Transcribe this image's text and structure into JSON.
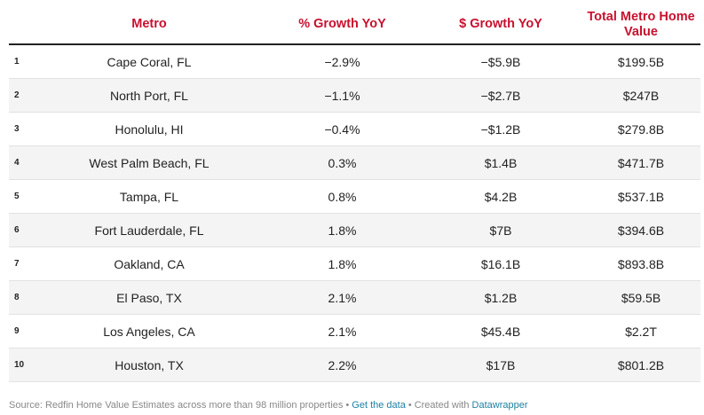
{
  "colors": {
    "header_text": "#c8102e",
    "link": "#1d81a2",
    "footer_text": "#888888",
    "row_alt_bg": "#f4f4f4"
  },
  "chart_data": {
    "type": "table",
    "columns": [
      "",
      "Metro",
      "% Growth YoY",
      "$ Growth YoY",
      "Total Metro Home Value"
    ],
    "rows": [
      {
        "rank": "1",
        "metro": "Cape Coral, FL",
        "pct_growth": "−2.9%",
        "dollar_growth": "−$5.9B",
        "total_value": "$199.5B"
      },
      {
        "rank": "2",
        "metro": "North Port, FL",
        "pct_growth": "−1.1%",
        "dollar_growth": "−$2.7B",
        "total_value": "$247B"
      },
      {
        "rank": "3",
        "metro": "Honolulu, HI",
        "pct_growth": "−0.4%",
        "dollar_growth": "−$1.2B",
        "total_value": "$279.8B"
      },
      {
        "rank": "4",
        "metro": "West Palm Beach, FL",
        "pct_growth": "0.3%",
        "dollar_growth": "$1.4B",
        "total_value": "$471.7B"
      },
      {
        "rank": "5",
        "metro": "Tampa, FL",
        "pct_growth": "0.8%",
        "dollar_growth": "$4.2B",
        "total_value": "$537.1B"
      },
      {
        "rank": "6",
        "metro": "Fort Lauderdale, FL",
        "pct_growth": "1.8%",
        "dollar_growth": "$7B",
        "total_value": "$394.6B"
      },
      {
        "rank": "7",
        "metro": "Oakland, CA",
        "pct_growth": "1.8%",
        "dollar_growth": "$16.1B",
        "total_value": "$893.8B"
      },
      {
        "rank": "8",
        "metro": "El Paso, TX",
        "pct_growth": "2.1%",
        "dollar_growth": "$1.2B",
        "total_value": "$59.5B"
      },
      {
        "rank": "9",
        "metro": "Los Angeles, CA",
        "pct_growth": "2.1%",
        "dollar_growth": "$45.4B",
        "total_value": "$2.2T"
      },
      {
        "rank": "10",
        "metro": "Houston, TX",
        "pct_growth": "2.2%",
        "dollar_growth": "$17B",
        "total_value": "$801.2B"
      }
    ]
  },
  "footer": {
    "source": "Source: Redfin Home Value Estimates across more than 98 million properties",
    "separator": "•",
    "get_data_label": "Get the data",
    "created_with": "Created with",
    "datawrapper_label": "Datawrapper"
  }
}
